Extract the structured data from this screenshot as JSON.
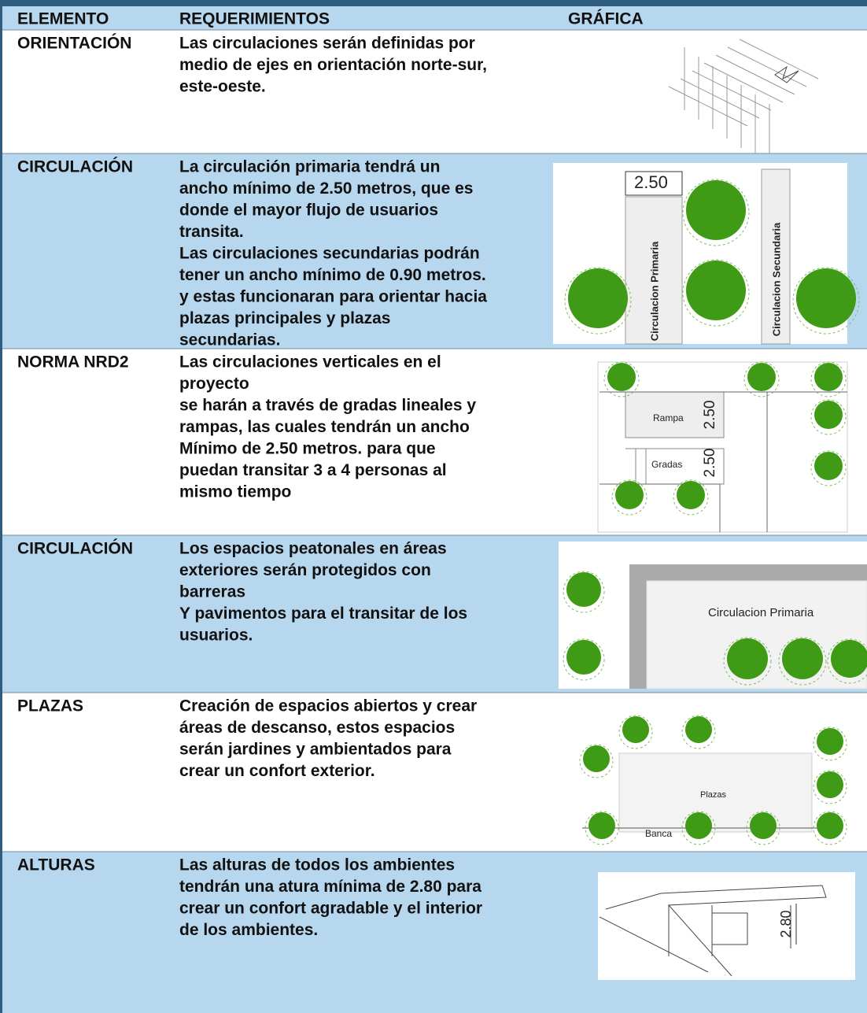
{
  "table": {
    "headers": [
      "ELEMENTO",
      "REQUERIMIENTOS",
      "GRÁFICA"
    ],
    "rows": [
      {
        "element": "ORIENTACIÓN",
        "requirement": [
          "Las circulaciones serán definidas por",
          "medio de ejes en orientación norte-sur,",
          "este-oeste."
        ],
        "graphic_labels": []
      },
      {
        "element": "CIRCULACIÓN",
        "requirement": [
          "La circulación primaria tendrá un",
          "ancho mínimo de 2.50 metros, que es",
          "donde el mayor flujo de usuarios",
          "transita.",
          "Las circulaciones secundarias podrán",
          "tener un ancho mínimo de 0.90 metros.",
          "y estas funcionaran para orientar hacia",
          "plazas principales y plazas",
          "secundarias."
        ],
        "graphic_labels": [
          "2.50",
          "Circulacion Primaria",
          "Circulacion Secundaria"
        ]
      },
      {
        "element": "NORMA NRD2",
        "requirement": [
          "Las circulaciones verticales en el",
          "proyecto",
          " se harán a través de gradas lineales y",
          "rampas, las cuales tendrán un ancho",
          " Mínimo de 2.50 metros. para que",
          "puedan transitar 3 a 4 personas al",
          "mismo tiempo"
        ],
        "graphic_labels": [
          "Rampa",
          "2.50",
          "Gradas",
          "2.50"
        ]
      },
      {
        "element": "CIRCULACIÓN",
        "requirement": [
          "Los espacios peatonales en áreas",
          "exteriores serán protegidos con",
          "barreras",
          "Y pavimentos para el transitar de los",
          "usuarios."
        ],
        "graphic_labels": [
          "Circulacion Primaria"
        ]
      },
      {
        "element": "PLAZAS",
        "requirement": [
          "Creación de espacios abiertos y crear",
          "áreas de descanso, estos espacios",
          "serán jardines y ambientados para",
          "crear un confort exterior."
        ],
        "graphic_labels": [
          "Plazas",
          "Banca"
        ]
      },
      {
        "element": "ALTURAS",
        "requirement": [
          "Las alturas de todos los ambientes",
          "tendrán una atura mínima de 2.80 para",
          "crear un confort agradable y el interior",
          "de los ambientes."
        ],
        "graphic_labels": [
          "2.80"
        ]
      }
    ]
  }
}
